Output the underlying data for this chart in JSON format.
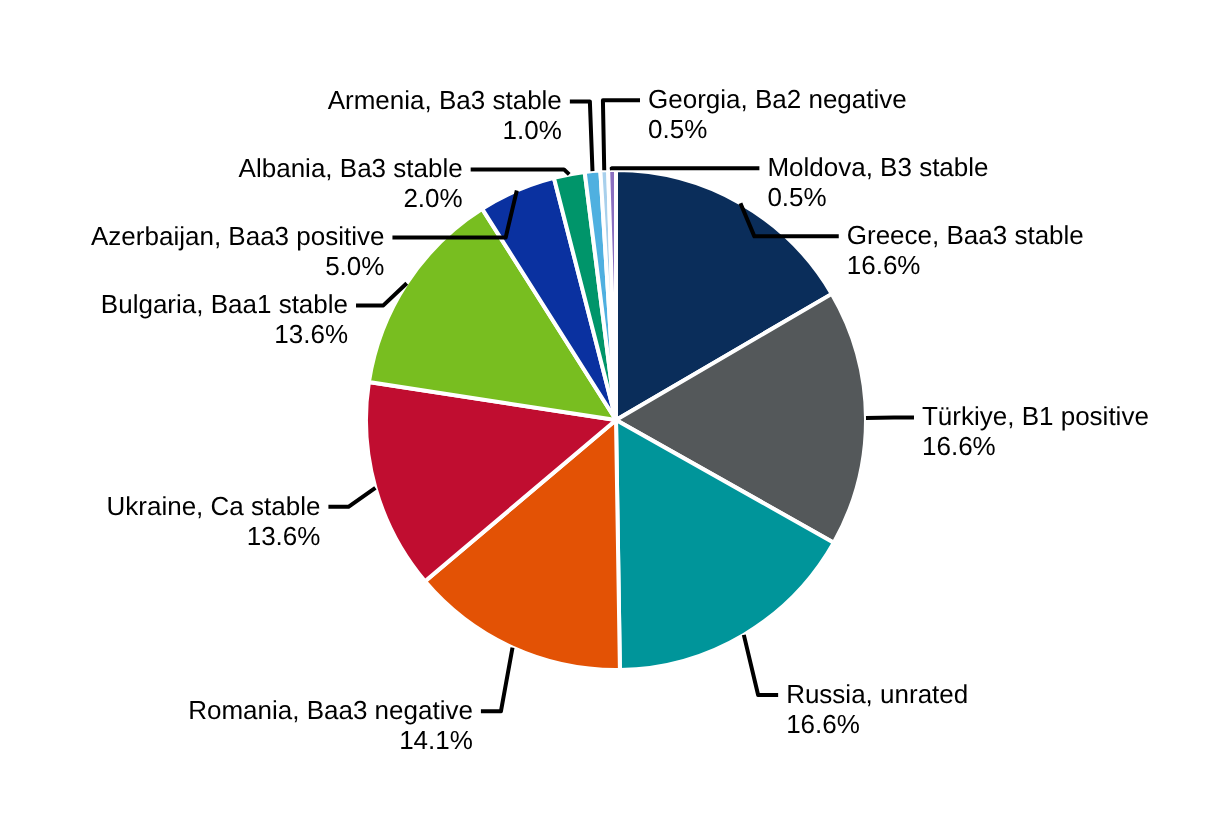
{
  "chart_data": {
    "type": "pie",
    "categories": [
      "Greece, Baa3 stable",
      "Türkiye, B1 positive",
      "Russia, unrated",
      "Romania, Baa3 negative",
      "Ukraine, Ca stable",
      "Bulgaria, Baa1 stable",
      "Azerbaijan, Baa3 positive",
      "Albania, Ba3 stable",
      "Armenia, Ba3 stable",
      "Georgia, Ba2 negative",
      "Moldova, B3 stable"
    ],
    "values": [
      16.6,
      16.6,
      16.6,
      14.1,
      13.6,
      13.6,
      5.0,
      2.0,
      1.0,
      0.5,
      0.5
    ],
    "colors": [
      "#0a2d5a",
      "#54585a",
      "#00959a",
      "#e35205",
      "#c00d30",
      "#78be20",
      "#0a31a0",
      "#00956a",
      "#4fb0e0",
      "#a8d0ec",
      "#8a6fc0"
    ],
    "value_labels": [
      "16.6%",
      "16.6%",
      "16.6%",
      "14.1%",
      "13.6%",
      "13.6%",
      "5.0%",
      "2.0%",
      "1.0%",
      "0.5%",
      "0.5%"
    ]
  }
}
